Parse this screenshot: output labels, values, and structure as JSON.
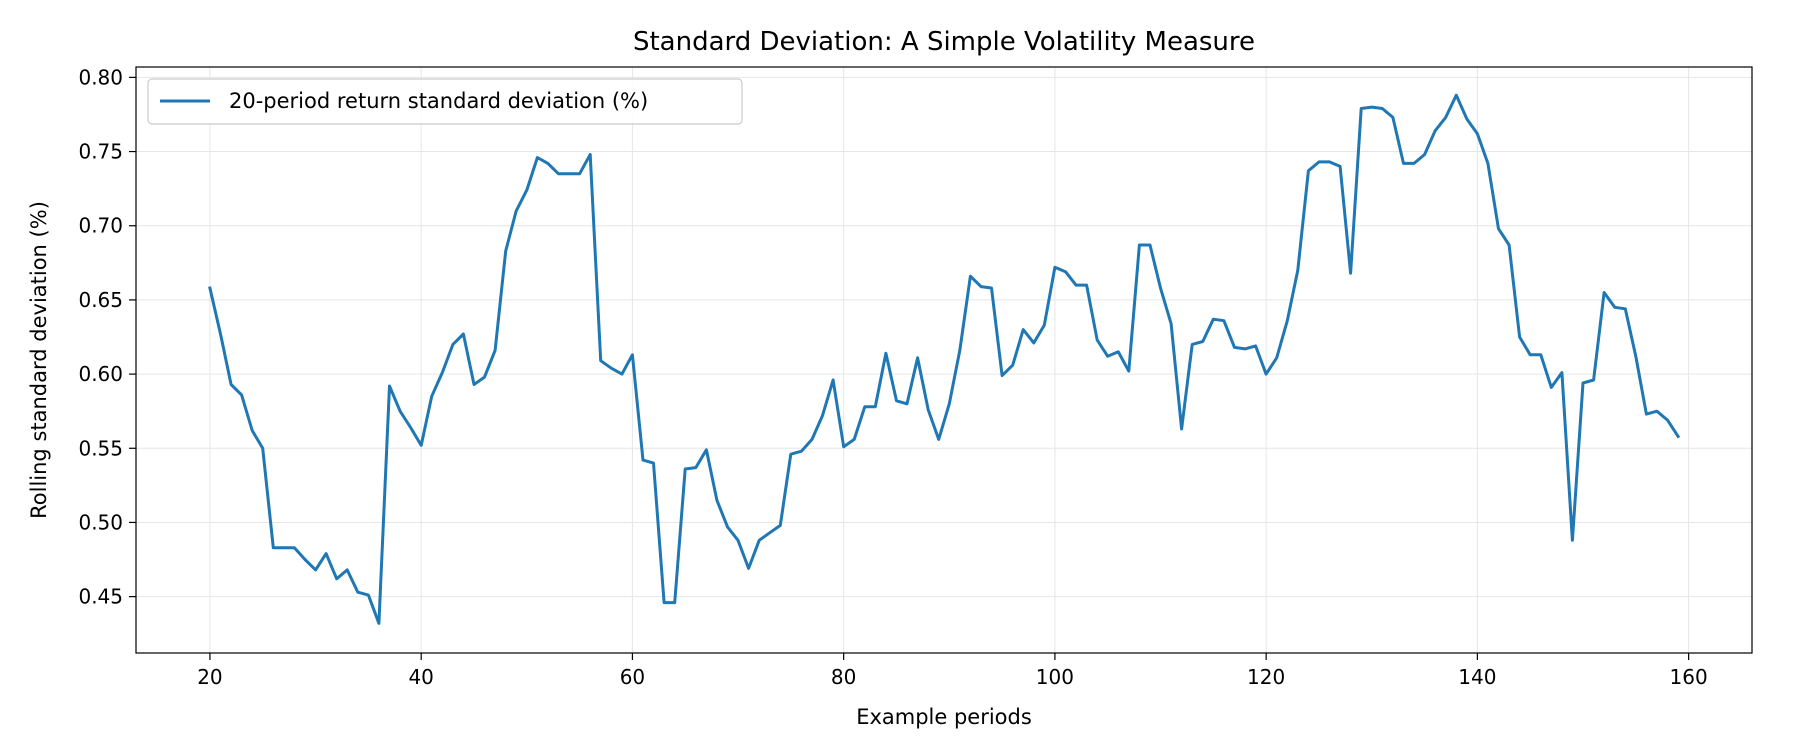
{
  "chart_data": {
    "type": "line",
    "title": "Standard Deviation: A Simple Volatility Measure",
    "xlabel": "Example periods",
    "ylabel": "Rolling standard deviation (%)",
    "xlim": [
      13,
      166
    ],
    "ylim": [
      0.412,
      0.807
    ],
    "xticks": [
      20,
      40,
      60,
      80,
      100,
      120,
      140,
      160
    ],
    "yticks": [
      0.45,
      0.5,
      0.55,
      0.6,
      0.65,
      0.7,
      0.75,
      0.8
    ],
    "ytick_labels": [
      "0.45",
      "0.50",
      "0.55",
      "0.60",
      "0.65",
      "0.70",
      "0.75",
      "0.80"
    ],
    "grid": true,
    "legend_position": "upper left",
    "series": [
      {
        "name": "20-period return standard deviation (%)",
        "color": "#1f77b4",
        "x": [
          20,
          21,
          22,
          23,
          24,
          25,
          26,
          27,
          28,
          29,
          30,
          31,
          32,
          33,
          34,
          35,
          36,
          37,
          38,
          39,
          40,
          41,
          42,
          43,
          44,
          45,
          46,
          47,
          48,
          49,
          50,
          51,
          52,
          53,
          54,
          55,
          56,
          57,
          58,
          59,
          60,
          61,
          62,
          63,
          64,
          65,
          66,
          67,
          68,
          69,
          70,
          71,
          72,
          73,
          74,
          75,
          76,
          77,
          78,
          79,
          80,
          81,
          82,
          83,
          84,
          85,
          86,
          87,
          88,
          89,
          90,
          91,
          92,
          93,
          94,
          95,
          96,
          97,
          98,
          99,
          100,
          101,
          102,
          103,
          104,
          105,
          106,
          107,
          108,
          109,
          110,
          111,
          112,
          113,
          114,
          115,
          116,
          117,
          118,
          119,
          120,
          121,
          122,
          123,
          124,
          125,
          126,
          127,
          128,
          129,
          130,
          131,
          132,
          133,
          134,
          135,
          136,
          137,
          138,
          139,
          140,
          141,
          142,
          143,
          144,
          145,
          146,
          147,
          148,
          149,
          150,
          151,
          152,
          153,
          154,
          155,
          156,
          157,
          158,
          159
        ],
        "y": [
          0.658,
          0.627,
          0.593,
          0.586,
          0.562,
          0.55,
          0.483,
          0.483,
          0.483,
          0.475,
          0.468,
          0.479,
          0.462,
          0.468,
          0.453,
          0.451,
          0.432,
          0.592,
          0.575,
          0.564,
          0.552,
          0.585,
          0.601,
          0.62,
          0.627,
          0.593,
          0.598,
          0.616,
          0.683,
          0.71,
          0.724,
          0.746,
          0.742,
          0.735,
          0.735,
          0.735,
          0.748,
          0.609,
          0.604,
          0.6,
          0.613,
          0.542,
          0.54,
          0.446,
          0.446,
          0.536,
          0.537,
          0.549,
          0.515,
          0.497,
          0.488,
          0.469,
          0.488,
          0.493,
          0.498,
          0.546,
          0.548,
          0.556,
          0.572,
          0.596,
          0.551,
          0.556,
          0.578,
          0.578,
          0.614,
          0.582,
          0.58,
          0.611,
          0.576,
          0.556,
          0.58,
          0.616,
          0.666,
          0.659,
          0.658,
          0.599,
          0.606,
          0.63,
          0.621,
          0.633,
          0.672,
          0.669,
          0.66,
          0.66,
          0.623,
          0.612,
          0.615,
          0.602,
          0.687,
          0.687,
          0.658,
          0.634,
          0.563,
          0.62,
          0.622,
          0.637,
          0.636,
          0.618,
          0.617,
          0.619,
          0.6,
          0.611,
          0.636,
          0.67,
          0.737,
          0.743,
          0.743,
          0.74,
          0.668,
          0.779,
          0.78,
          0.779,
          0.773,
          0.742,
          0.742,
          0.748,
          0.764,
          0.773,
          0.788,
          0.772,
          0.762,
          0.742,
          0.698,
          0.687,
          0.625,
          0.613,
          0.613,
          0.591,
          0.601,
          0.488,
          0.594,
          0.596,
          0.655,
          0.645,
          0.644,
          0.612,
          0.573,
          0.575,
          0.569,
          0.558
        ]
      }
    ]
  }
}
